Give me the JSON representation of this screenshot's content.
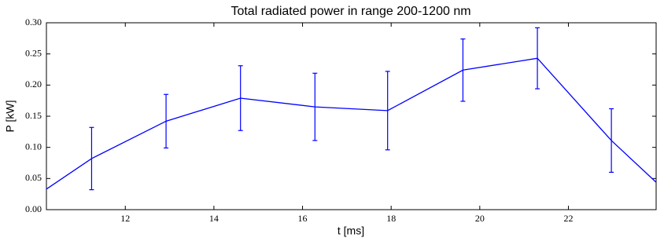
{
  "chart_data": {
    "type": "line",
    "title": "Total radiated power in range 200-1200 nm",
    "xlabel": "t [ms]",
    "ylabel": "P [kW]",
    "x": [
      10.22,
      11.24,
      12.92,
      14.6,
      16.28,
      17.92,
      19.62,
      21.3,
      22.97,
      23.98
    ],
    "series": [
      {
        "color": "#0000ff",
        "values": [
          0.033,
          0.082,
          0.142,
          0.179,
          0.165,
          0.159,
          0.224,
          0.243,
          0.111,
          0.044
        ],
        "errors": [
          null,
          0.05,
          0.043,
          0.052,
          0.054,
          0.063,
          0.05,
          0.049,
          0.051,
          null
        ]
      }
    ],
    "xlim": [
      10.22,
      23.98
    ],
    "xticks": [
      12,
      14,
      16,
      18,
      20,
      22
    ],
    "ylim": [
      0,
      0.3
    ],
    "yticks": [
      {
        "value": 0,
        "label": "0.00"
      },
      {
        "value": 0.05,
        "label": "0.05"
      },
      {
        "value": 0.1,
        "label": "0.10"
      },
      {
        "value": 0.15,
        "label": "0.15"
      },
      {
        "value": 0.2,
        "label": "0.20"
      },
      {
        "value": 0.25,
        "label": "0.25"
      },
      {
        "value": 0.3,
        "label": "0.30"
      }
    ]
  }
}
